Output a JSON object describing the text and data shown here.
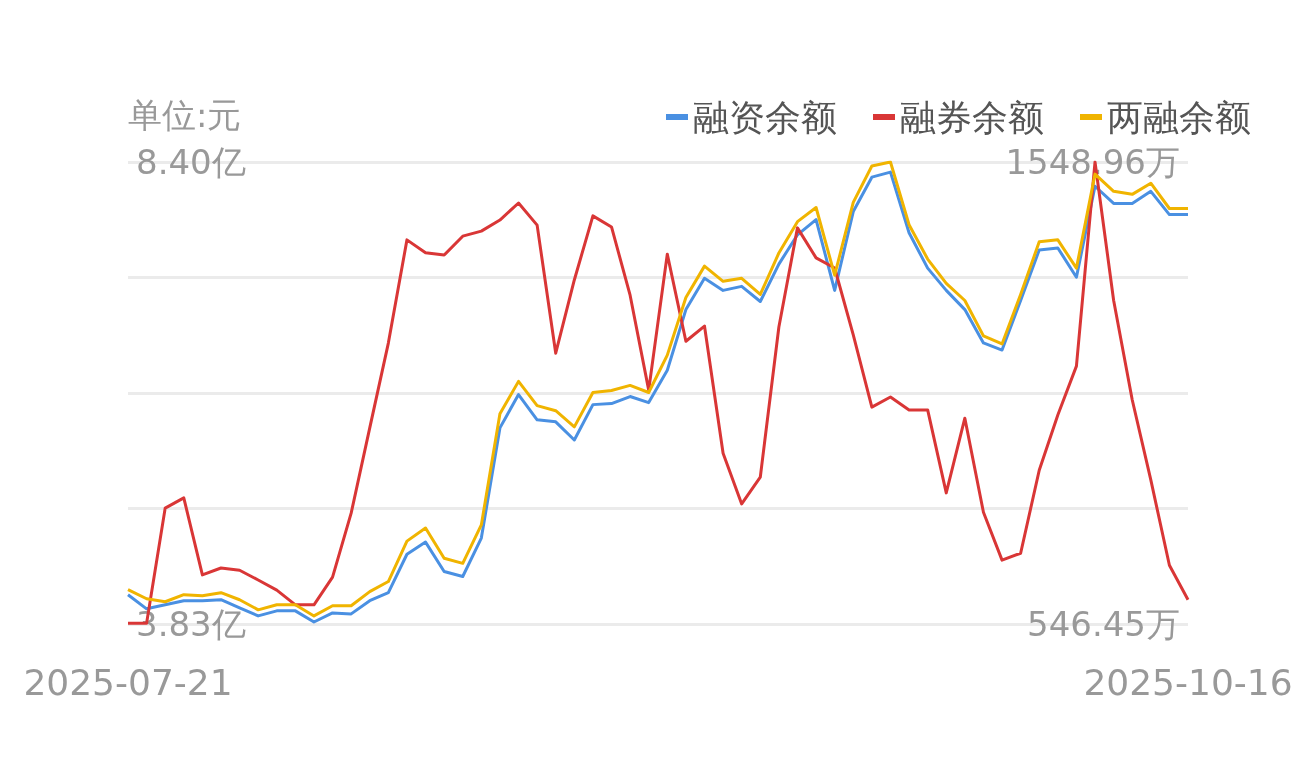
{
  "chart_data": {
    "type": "line",
    "ylabel": "单位:元",
    "categories": [
      "2025-07-21",
      null,
      null,
      null,
      null,
      null,
      null,
      null,
      null,
      null,
      null,
      null,
      null,
      null,
      null,
      null,
      null,
      null,
      null,
      null,
      null,
      null,
      null,
      null,
      null,
      null,
      null,
      null,
      null,
      null,
      null,
      null,
      null,
      null,
      null,
      null,
      null,
      null,
      null,
      null,
      null,
      null,
      null,
      null,
      null,
      null,
      null,
      null,
      null,
      null,
      null,
      null,
      null,
      null,
      null,
      null,
      null,
      "2025-10-16"
    ],
    "series": [
      {
        "name": "融资余额",
        "color": "#4a90e2",
        "values": [
          4.12,
          3.98,
          4.02,
          4.06,
          4.06,
          4.07,
          3.99,
          3.91,
          3.96,
          3.96,
          3.85,
          3.94,
          3.93,
          4.06,
          4.14,
          4.52,
          4.64,
          4.35,
          4.3,
          4.68,
          5.77,
          6.1,
          5.85,
          5.83,
          5.65,
          6.0,
          6.01,
          6.08,
          6.02,
          6.34,
          6.94,
          7.25,
          7.13,
          7.17,
          7.02,
          7.39,
          7.68,
          7.83,
          7.13,
          7.91,
          8.25,
          8.3,
          7.7,
          7.35,
          7.13,
          6.94,
          6.61,
          6.54,
          7.03,
          7.53,
          7.55,
          7.26,
          8.16,
          7.99,
          7.99,
          8.11,
          7.88,
          7.88
        ]
      },
      {
        "name": "融券余额",
        "color": "#d93636",
        "axis": "y2",
        "values": [
          548,
          548,
          798,
          820,
          653,
          668,
          663,
          642,
          620,
          588,
          588,
          648,
          787,
          972,
          1156,
          1380,
          1352,
          1347,
          1388,
          1399,
          1423,
          1460,
          1412,
          1134,
          1293,
          1432,
          1408,
          1260,
          1054,
          1349,
          1160,
          1193,
          917,
          807,
          865,
          1191,
          1406,
          1341,
          1319,
          1174,
          1017,
          1039,
          1011,
          1011,
          831,
          993,
          789,
          685,
          700,
          880,
          1000,
          1106,
          1548.96,
          1249,
          1033,
          859,
          674,
          599
        ]
      },
      {
        "name": "两融余额",
        "color": "#f0b400",
        "values": [
          4.17,
          4.08,
          4.05,
          4.12,
          4.11,
          4.14,
          4.07,
          3.97,
          4.02,
          4.02,
          3.91,
          4.01,
          4.01,
          4.15,
          4.25,
          4.65,
          4.78,
          4.48,
          4.43,
          4.81,
          5.91,
          6.23,
          5.99,
          5.94,
          5.78,
          6.12,
          6.14,
          6.19,
          6.12,
          6.49,
          7.06,
          7.37,
          7.22,
          7.25,
          7.09,
          7.5,
          7.81,
          7.95,
          7.28,
          8.0,
          8.36,
          8.4,
          7.78,
          7.44,
          7.2,
          7.03,
          6.68,
          6.6,
          7.09,
          7.61,
          7.63,
          7.35,
          8.28,
          8.11,
          8.08,
          8.19,
          7.94,
          7.94
        ]
      }
    ],
    "ylim": [
      3.83,
      8.4
    ],
    "yticks": [
      {
        "value": 3.83,
        "label": "3.83亿"
      },
      {
        "value": 4.9725,
        "label": null
      },
      {
        "value": 6.115,
        "label": null
      },
      {
        "value": 7.2575,
        "label": null
      },
      {
        "value": 8.4,
        "label": "8.40亿"
      }
    ],
    "y2lim": [
      546.45,
      1548.96
    ],
    "y2ticks": [
      {
        "value": 546.45,
        "label": "546.45万"
      },
      {
        "value": 797.0775,
        "label": null
      },
      {
        "value": 1047.705,
        "label": null
      },
      {
        "value": 1298.3325,
        "label": null
      },
      {
        "value": 1548.96,
        "label": "1548.96万"
      }
    ],
    "grid": "y",
    "legend": "top right",
    "marker": "none",
    "line_style": "solid"
  }
}
